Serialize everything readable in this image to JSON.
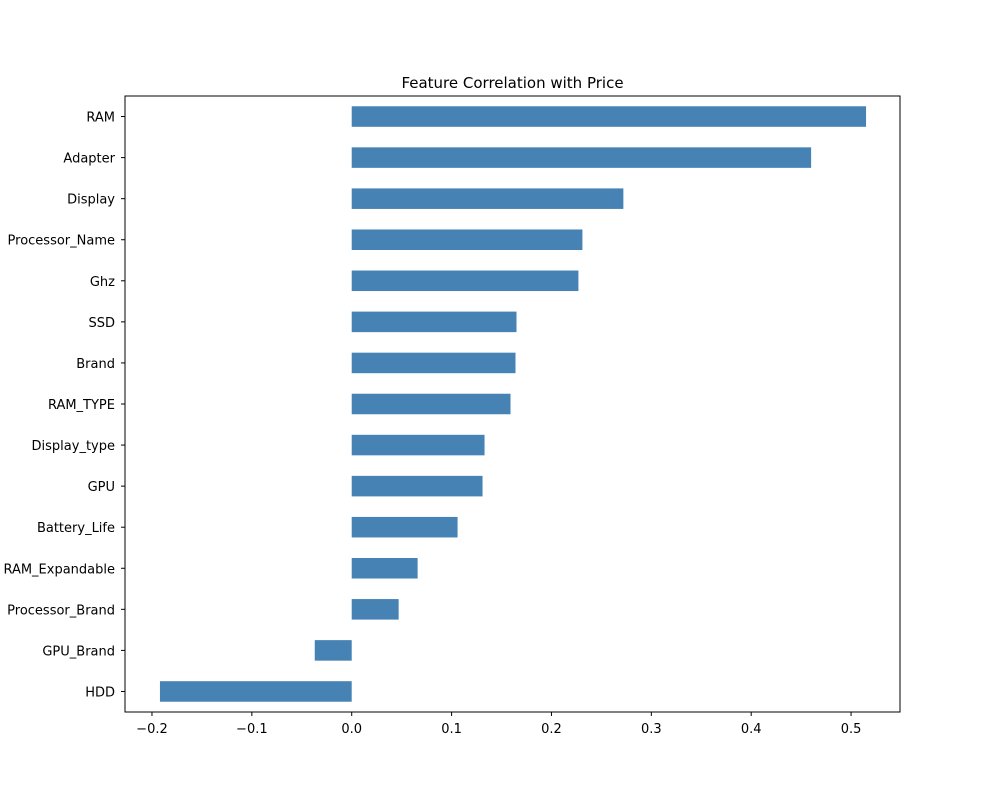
{
  "chart_data": {
    "type": "bar",
    "orientation": "horizontal",
    "title": "Feature Correlation with Price",
    "xlabel": "",
    "ylabel": "",
    "categories": [
      "RAM",
      "Adapter",
      "Display",
      "Processor_Name",
      "Ghz",
      "SSD",
      "Brand",
      "RAM_TYPE",
      "Display_type",
      "GPU",
      "Battery_Life",
      "RAM_Expandable",
      "Processor_Brand",
      "GPU_Brand",
      "HDD"
    ],
    "values": [
      0.515,
      0.46,
      0.272,
      0.231,
      0.227,
      0.165,
      0.164,
      0.159,
      0.133,
      0.131,
      0.106,
      0.066,
      0.047,
      -0.037,
      -0.192
    ],
    "xlim": [
      -0.227,
      0.549
    ],
    "xticks": [
      -0.2,
      -0.1,
      0.0,
      0.1,
      0.2,
      0.3,
      0.4,
      0.5
    ],
    "xtick_labels": [
      "−0.2",
      "−0.1",
      "0.0",
      "0.1",
      "0.2",
      "0.3",
      "0.4",
      "0.5"
    ],
    "grid": false,
    "legend": "none",
    "bar_color": "#4682b4"
  }
}
